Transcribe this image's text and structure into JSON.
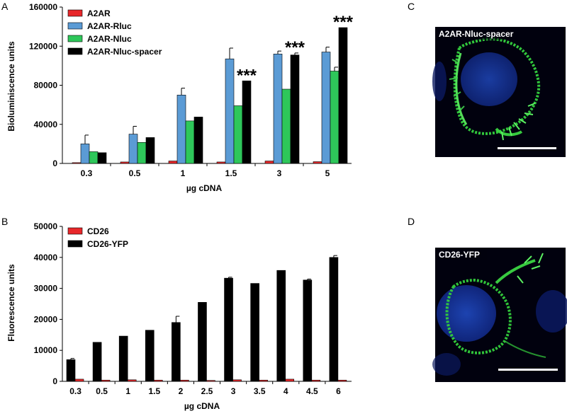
{
  "panel_labels": {
    "a": "A",
    "b": "B",
    "c": "C",
    "d": "D"
  },
  "chart_data": [
    {
      "type": "bar",
      "panel": "A",
      "xlabel": "µg cDNA",
      "ylabel": "Bioluminiscence units",
      "ylim": [
        0,
        160000
      ],
      "yticks": [
        0,
        40000,
        80000,
        120000,
        160000
      ],
      "ytick_labels": [
        "0",
        "40000",
        "80000",
        "120000",
        "160000"
      ],
      "categories": [
        "0.3",
        "0.5",
        "1",
        "1.5",
        "3",
        "5"
      ],
      "legend_position": "top-left",
      "series": [
        {
          "name": "A2AR",
          "color": "#e8272a",
          "values": [
            800,
            1500,
            2500,
            1500,
            2500,
            1800
          ],
          "errors": [
            0,
            0,
            0,
            0,
            0,
            0
          ]
        },
        {
          "name": "A2AR-Rluc",
          "color": "#5b9bd5",
          "values": [
            20000,
            30000,
            70000,
            107000,
            112000,
            114000
          ],
          "errors": [
            9000,
            8000,
            7000,
            11000,
            3000,
            5000
          ]
        },
        {
          "name": "A2AR-Nluc",
          "color": "#2ec75a",
          "values": [
            12000,
            21500,
            43500,
            59000,
            76000,
            94500
          ],
          "errors": [
            0,
            0,
            0,
            0,
            0,
            4000
          ]
        },
        {
          "name": "A2AR-Nluc-spacer",
          "color": "#000000",
          "values": [
            11000,
            26500,
            47500,
            84500,
            111000,
            139000
          ],
          "errors": [
            0,
            0,
            0,
            0,
            2000,
            0
          ]
        }
      ],
      "annotations": [
        {
          "category": "1.5",
          "text": "***"
        },
        {
          "category": "3",
          "text": "***"
        },
        {
          "category": "5",
          "text": "***"
        }
      ]
    },
    {
      "type": "bar",
      "panel": "B",
      "xlabel": "µg cDNA",
      "ylabel": "Fluorescence units",
      "ylim": [
        0,
        50000
      ],
      "yticks": [
        0,
        10000,
        20000,
        30000,
        40000,
        50000
      ],
      "ytick_labels": [
        "0",
        "10000",
        "20000",
        "30000",
        "40000",
        "50000"
      ],
      "categories": [
        "0.3",
        "0.5",
        "1",
        "1.5",
        "2",
        "2.5",
        "3",
        "3.5",
        "4",
        "4.5",
        "6"
      ],
      "legend_position": "top-left",
      "series": [
        {
          "name": "CD26-YFP",
          "color": "#000000",
          "values": [
            7000,
            12600,
            14600,
            16500,
            19000,
            25500,
            33300,
            31600,
            35800,
            32700,
            40000
          ],
          "errors": [
            400,
            0,
            0,
            0,
            2000,
            0,
            300,
            0,
            0,
            300,
            600
          ]
        },
        {
          "name": "CD26",
          "color": "#e8272a",
          "values": [
            700,
            400,
            500,
            400,
            400,
            300,
            500,
            400,
            700,
            400,
            400
          ],
          "errors": [
            0,
            0,
            0,
            0,
            0,
            0,
            0,
            0,
            0,
            0,
            0
          ]
        }
      ]
    }
  ],
  "micrographs": [
    {
      "panel": "C",
      "label": "A2AR-Nluc-spacer"
    },
    {
      "panel": "D",
      "label": "CD26-YFP"
    }
  ]
}
